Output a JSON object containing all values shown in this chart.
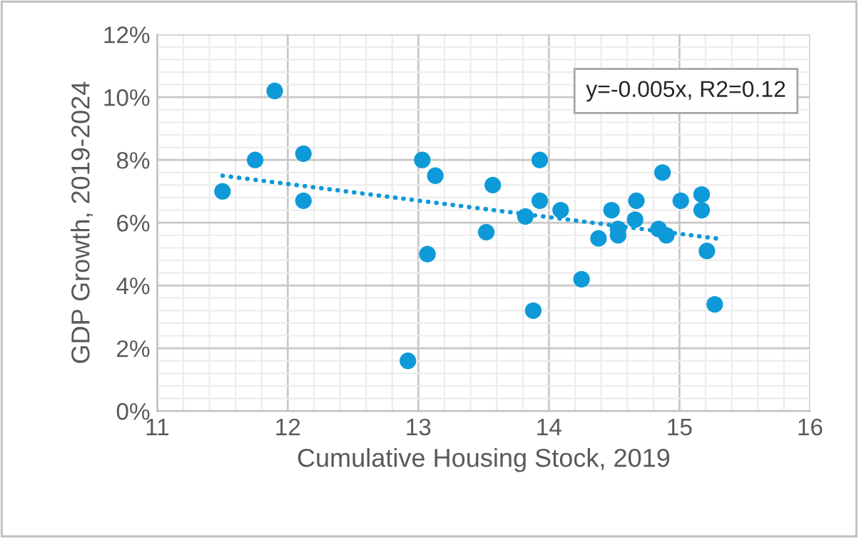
{
  "chart_data": {
    "type": "scatter",
    "xlabel": "Cumulative Housing Stock, 2019",
    "ylabel": "GDP Growth, 2019-2024",
    "series": [
      {
        "marker": "circle",
        "color": "#0e9ad8",
        "x": [
          11.5,
          11.75,
          11.9,
          12.12,
          12.12,
          13.03,
          13.13,
          13.07,
          12.92,
          13.52,
          13.57,
          13.82,
          13.93,
          13.93,
          13.88,
          14.09,
          14.25,
          14.38,
          14.48,
          14.53,
          14.53,
          14.67,
          14.66,
          14.87,
          14.84,
          14.9,
          15.01,
          15.17,
          15.17,
          15.21,
          15.27
        ],
        "values": [
          7.0,
          8.0,
          10.2,
          8.2,
          6.7,
          8.0,
          7.5,
          5.0,
          1.6,
          5.7,
          7.2,
          6.2,
          8.0,
          6.7,
          3.2,
          6.4,
          4.2,
          5.5,
          6.4,
          5.8,
          5.6,
          6.7,
          6.1,
          7.6,
          5.8,
          5.6,
          6.7,
          6.9,
          6.4,
          5.1,
          3.4
        ]
      },
      {
        "type": "line",
        "marker": "none",
        "line_style": "dotted",
        "color": "#0e9ad8",
        "x": [
          11.5,
          15.28
        ],
        "values": [
          7.5,
          5.5
        ]
      }
    ],
    "xlim": [
      11,
      16
    ],
    "xticks": [
      11,
      12,
      13,
      14,
      15,
      16
    ],
    "ylim": [
      0,
      12
    ],
    "yticks": [
      {
        "value": 0,
        "label": "0%"
      },
      {
        "value": 2,
        "label": "2%"
      },
      {
        "value": 4,
        "label": "4%"
      },
      {
        "value": 6,
        "label": "6%"
      },
      {
        "value": 8,
        "label": "8%"
      },
      {
        "value": 10,
        "label": "10%"
      },
      {
        "value": 12,
        "label": "12%"
      }
    ],
    "grid": true,
    "annotations": [
      "y=-0.005x, R2=0.12"
    ]
  }
}
